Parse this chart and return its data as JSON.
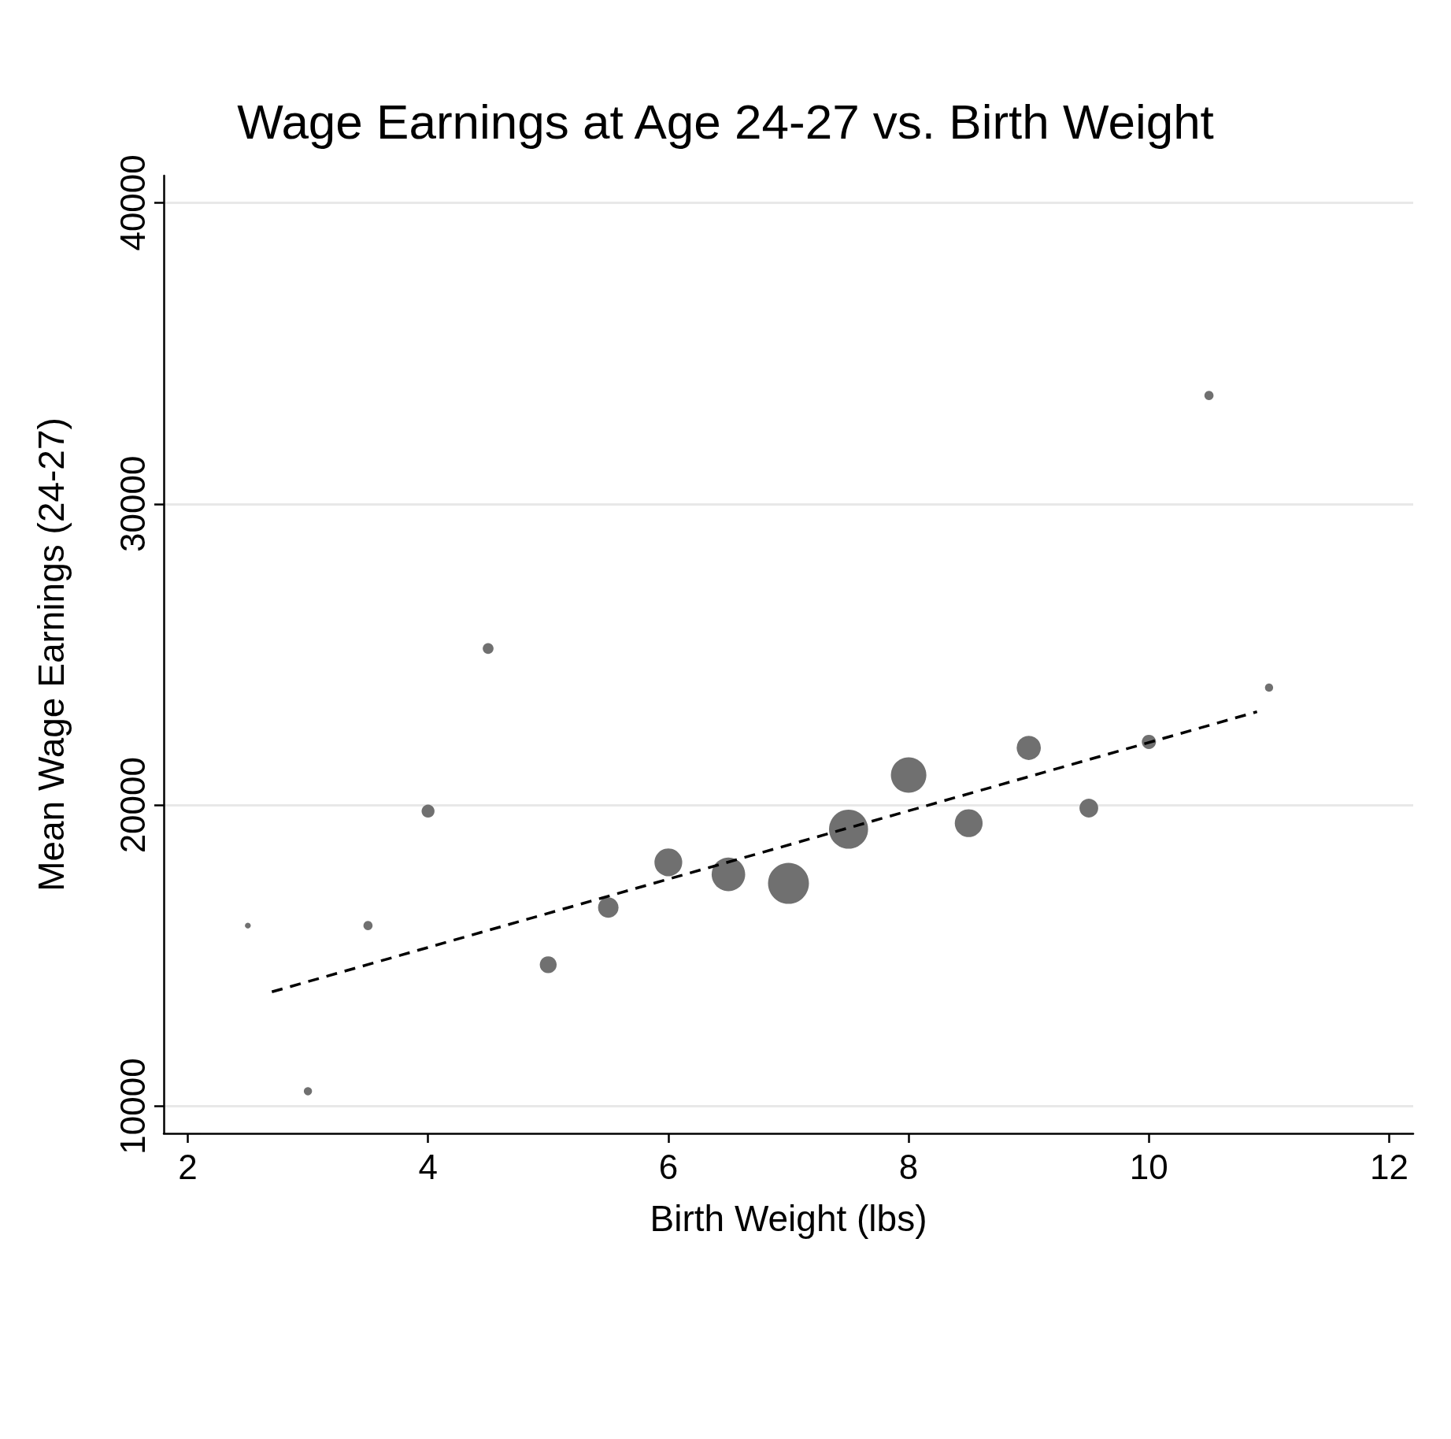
{
  "chart_data": {
    "type": "bubble",
    "title": "Wage Earnings at Age 24-27 vs. Birth Weight",
    "xlabel": "Birth Weight (lbs)",
    "ylabel": "Mean Wage Earnings (24-27)",
    "xlim": [
      1.8,
      12.2
    ],
    "xticks": [
      2,
      4,
      6,
      8,
      10,
      12
    ],
    "ylim": [
      9100,
      40900
    ],
    "yticks": [
      10000,
      20000,
      30000,
      40000
    ],
    "grid": "y",
    "marker": "circle",
    "series": [
      {
        "color": "#707070",
        "x": [
          2.5,
          3,
          3.5,
          4,
          4.5,
          5,
          5.5,
          6,
          6.5,
          7,
          7.5,
          8,
          8.5,
          9,
          9.5,
          10,
          10.5,
          11
        ],
        "values": [
          16000,
          10500,
          16000,
          19800,
          25200,
          14700,
          16600,
          18100,
          17700,
          17400,
          19200,
          21000,
          19400,
          21900,
          19900,
          22100,
          33600,
          23900
        ],
        "sizes": [
          0.02,
          0.04,
          0.05,
          0.1,
          0.07,
          0.17,
          0.25,
          0.46,
          0.67,
          1,
          0.91,
          0.75,
          0.46,
          0.35,
          0.21,
          0.12,
          0.05,
          0.04
        ]
      },
      {
        "type": "line",
        "color": "#000000",
        "line_style": "dashed",
        "marker": "none",
        "x": [
          2.7,
          10.9
        ],
        "values": [
          13800,
          23100
        ]
      }
    ]
  }
}
